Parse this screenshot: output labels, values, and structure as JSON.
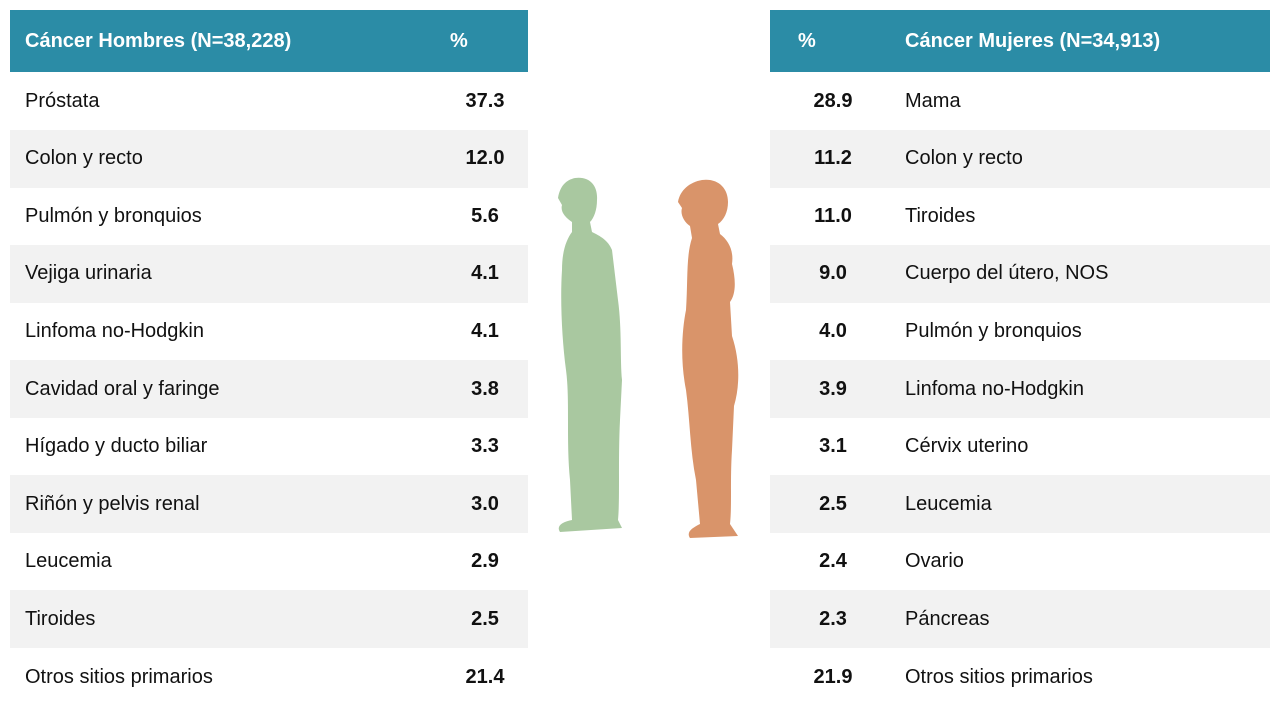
{
  "left_table": {
    "header": [
      "Cáncer Hombres (N=38,228)",
      "%"
    ],
    "rows": [
      [
        "Próstata",
        "37.3"
      ],
      [
        "Colon y recto",
        "12.0"
      ],
      [
        "Pulmón y bronquios",
        "5.6"
      ],
      [
        "Vejiga urinaria",
        "4.1"
      ],
      [
        "Linfoma no-Hodgkin",
        "4.1"
      ],
      [
        "Cavidad oral y faringe",
        "3.8"
      ],
      [
        "Hígado y ducto biliar",
        "3.3"
      ],
      [
        "Riñón y pelvis renal",
        "3.0"
      ],
      [
        "Leucemia",
        "2.9"
      ],
      [
        "Tiroides",
        "2.5"
      ],
      [
        "Otros sitios primarios",
        "21.4"
      ]
    ]
  },
  "right_table": {
    "header": [
      "%",
      "Cáncer Mujeres (N=34,913)"
    ],
    "rows": [
      [
        "28.9",
        "Mama"
      ],
      [
        "11.2",
        "Colon y recto"
      ],
      [
        "11.0",
        "Tiroides"
      ],
      [
        "9.0",
        "Cuerpo del útero, NOS"
      ],
      [
        "4.0",
        "Pulmón y bronquios"
      ],
      [
        "3.9",
        "Linfoma no-Hodgkin"
      ],
      [
        "3.1",
        "Cérvix uterino"
      ],
      [
        "2.5",
        "Leucemia"
      ],
      [
        "2.4",
        "Ovario"
      ],
      [
        "2.3",
        "Páncreas"
      ],
      [
        "21.9",
        "Otros sitios primarios"
      ]
    ]
  }
}
